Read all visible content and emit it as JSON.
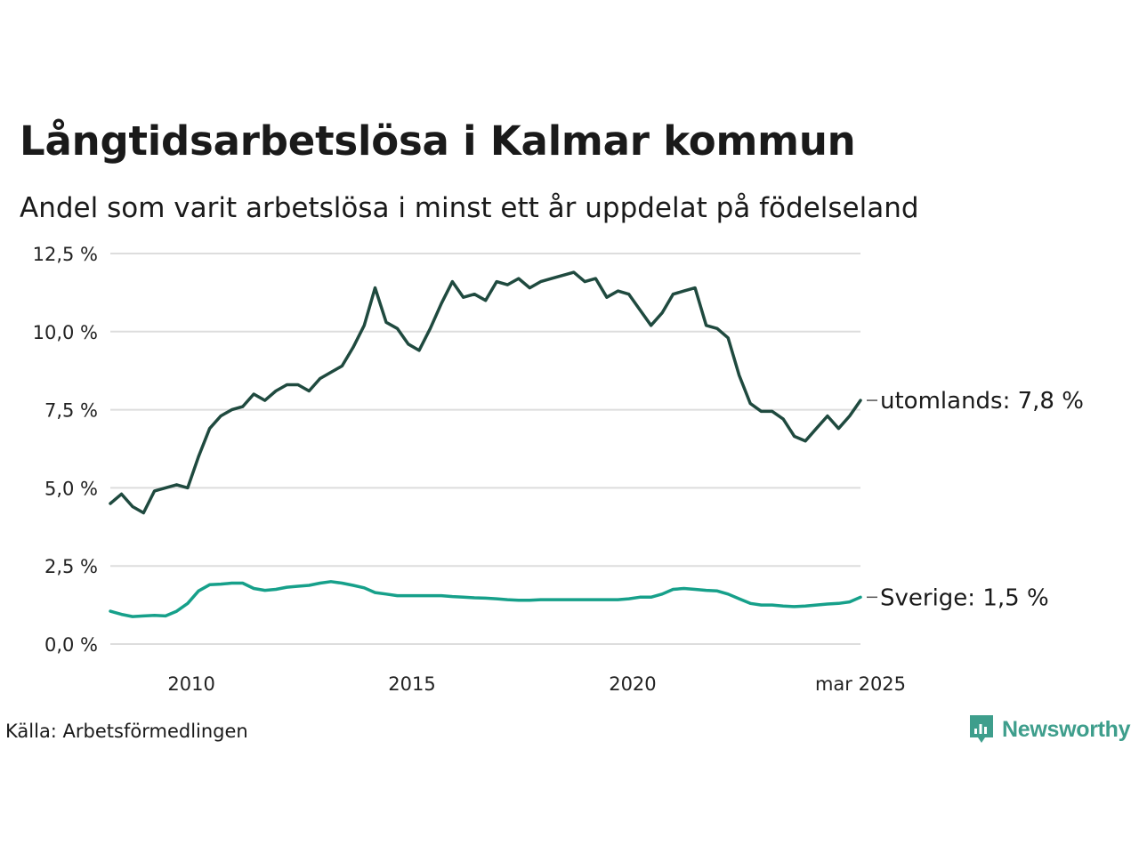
{
  "title": "Långtidsarbetslösa i Kalmar kommun",
  "subtitle": "Andel som varit arbetslösa i minst ett år uppdelat på födelseland",
  "source": "Källa: Arbetsförmedlingen",
  "brand": {
    "name": "Newsworthy",
    "icon": "newsworthy-bar-chart-logo-icon",
    "color": "#3e9e8c"
  },
  "colors": {
    "utomlands": "#1f4a3f",
    "sverige": "#16a08a",
    "grid": "#dddddd"
  },
  "chart_data": {
    "type": "line",
    "ylim": [
      0,
      12.5
    ],
    "yticks": [
      "0,0 %",
      "2,5 %",
      "5,0 %",
      "7,5 %",
      "10,0 %",
      "12,5 %"
    ],
    "xticks": [
      "2010",
      "2015",
      "2020",
      "mar 2025"
    ],
    "grid": true,
    "x": [
      "2008-03",
      "2008-06",
      "2008-09",
      "2008-12",
      "2009-03",
      "2009-06",
      "2009-09",
      "2009-12",
      "2010-03",
      "2010-06",
      "2010-09",
      "2010-12",
      "2011-03",
      "2011-06",
      "2011-09",
      "2011-12",
      "2012-03",
      "2012-06",
      "2012-09",
      "2012-12",
      "2013-03",
      "2013-06",
      "2013-09",
      "2013-12",
      "2014-03",
      "2014-06",
      "2014-09",
      "2014-12",
      "2015-03",
      "2015-06",
      "2015-09",
      "2015-12",
      "2016-03",
      "2016-06",
      "2016-09",
      "2016-12",
      "2017-03",
      "2017-06",
      "2017-09",
      "2017-12",
      "2018-03",
      "2018-06",
      "2018-09",
      "2018-12",
      "2019-03",
      "2019-06",
      "2019-09",
      "2019-12",
      "2020-03",
      "2020-06",
      "2020-09",
      "2020-12",
      "2021-03",
      "2021-06",
      "2021-09",
      "2021-12",
      "2022-03",
      "2022-06",
      "2022-09",
      "2022-12",
      "2023-03",
      "2023-06",
      "2023-09",
      "2023-12",
      "2024-03",
      "2024-06",
      "2024-09",
      "2024-12",
      "2025-03"
    ],
    "series": [
      {
        "name": "utomlands",
        "end_label": "utomlands: 7,8 %",
        "values": [
          4.5,
          4.8,
          4.4,
          4.2,
          4.9,
          5.0,
          5.1,
          5.0,
          6.0,
          6.9,
          7.3,
          7.5,
          7.6,
          8.0,
          7.8,
          8.1,
          8.3,
          8.3,
          8.1,
          8.5,
          8.7,
          8.9,
          9.5,
          10.2,
          11.4,
          10.3,
          10.1,
          9.6,
          9.4,
          10.1,
          10.9,
          11.6,
          11.1,
          11.2,
          11.0,
          11.6,
          11.5,
          11.7,
          11.4,
          11.6,
          11.7,
          11.8,
          11.9,
          11.6,
          11.7,
          11.1,
          11.3,
          11.2,
          10.7,
          10.2,
          10.6,
          11.2,
          11.3,
          11.4,
          10.2,
          10.1,
          9.8,
          8.6,
          7.7,
          7.45,
          7.45,
          7.2,
          6.65,
          6.5,
          6.9,
          7.3,
          6.9,
          7.3,
          7.8
        ]
      },
      {
        "name": "Sverige",
        "end_label": "Sverige: 1,5 %",
        "values": [
          1.05,
          0.95,
          0.88,
          0.9,
          0.92,
          0.9,
          1.05,
          1.3,
          1.7,
          1.9,
          1.92,
          1.95,
          1.95,
          1.78,
          1.72,
          1.75,
          1.82,
          1.85,
          1.88,
          1.95,
          2.0,
          1.95,
          1.88,
          1.8,
          1.65,
          1.6,
          1.55,
          1.55,
          1.55,
          1.55,
          1.55,
          1.52,
          1.5,
          1.48,
          1.47,
          1.45,
          1.42,
          1.4,
          1.4,
          1.42,
          1.42,
          1.42,
          1.42,
          1.42,
          1.42,
          1.42,
          1.42,
          1.45,
          1.5,
          1.5,
          1.6,
          1.75,
          1.78,
          1.75,
          1.72,
          1.7,
          1.6,
          1.45,
          1.3,
          1.25,
          1.25,
          1.22,
          1.2,
          1.22,
          1.25,
          1.28,
          1.3,
          1.35,
          1.5
        ]
      }
    ]
  }
}
